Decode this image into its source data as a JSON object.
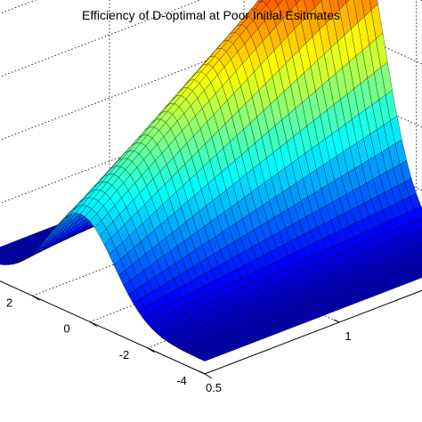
{
  "chart_data": {
    "type": "surface",
    "title": "Efficiency of D-optimal at Poor Initial Esitmates",
    "xlabel": "",
    "ylabel": "",
    "zlabel": "",
    "y_ticks": [
      "2",
      "0",
      "-2",
      "-4"
    ],
    "x_ticks": [
      "0.5",
      "1"
    ],
    "y_range": [
      -4,
      4
    ],
    "x_range": [
      0.5,
      1.5
    ],
    "grid": true,
    "box": true,
    "colormap": "jet",
    "colormap_stops": [
      "#00008f",
      "#0000ff",
      "#00ffff",
      "#ffff00",
      "#ff0000",
      "#800000"
    ],
    "edge_color": "#000000",
    "shape": "ridge along the y axis, rising from near zero at y = -4 and y = 4 to a maximum near the centre, sloping down towards x = 0.5"
  }
}
